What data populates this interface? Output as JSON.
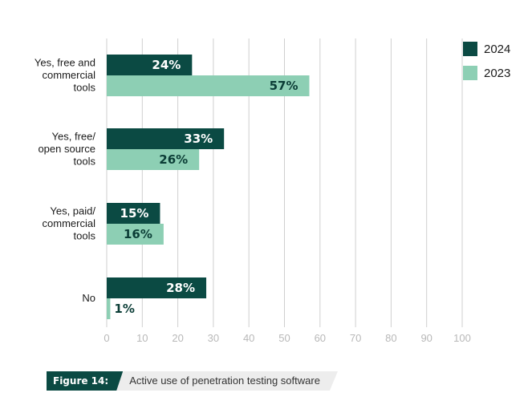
{
  "chart_data": {
    "type": "bar",
    "orientation": "horizontal",
    "categories": [
      [
        "Yes, free and",
        "commercial",
        "tools"
      ],
      [
        "Yes, free/",
        "open source",
        "tools"
      ],
      [
        "Yes, paid/",
        "commercial",
        "tools"
      ],
      [
        "No"
      ]
    ],
    "series": [
      {
        "name": "2024",
        "color": "#0b4a43",
        "label_color": "#ffffff",
        "values": [
          24,
          33,
          15,
          28
        ]
      },
      {
        "name": "2023",
        "color": "#8dcfb4",
        "label_color": "#0b3d36",
        "values": [
          57,
          26,
          16,
          1
        ]
      }
    ],
    "value_labels": [
      [
        "24%",
        "33%",
        "15%",
        "28%"
      ],
      [
        "57%",
        "26%",
        "16%",
        "1%"
      ]
    ],
    "x_ticks": [
      0,
      10,
      20,
      30,
      40,
      50,
      60,
      70,
      80,
      90,
      100
    ],
    "xlim": [
      0,
      100
    ],
    "grid": true,
    "legend_position": "top-right"
  },
  "figure": {
    "label": "Figure 14:",
    "caption": "Active use of penetration testing software"
  }
}
